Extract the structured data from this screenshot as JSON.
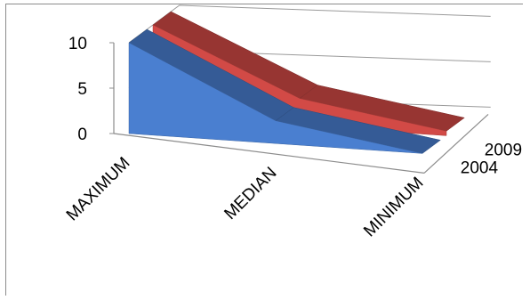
{
  "chart_data": {
    "type": "area",
    "subtype": "3d-area",
    "categories": [
      "MAXIMUM",
      "MEDIAN",
      "MINIMUM"
    ],
    "series": [
      {
        "name": "2004",
        "values": [
          10,
          2.5,
          0
        ],
        "color": "#4a7fd0"
      },
      {
        "name": "2009",
        "values": [
          10,
          3,
          0.5
        ],
        "color": "#d24a46"
      }
    ],
    "ylim": [
      0,
      10
    ],
    "yticks": [
      0,
      5,
      10
    ],
    "grid": true,
    "legend": "depth-axis labels on right"
  }
}
